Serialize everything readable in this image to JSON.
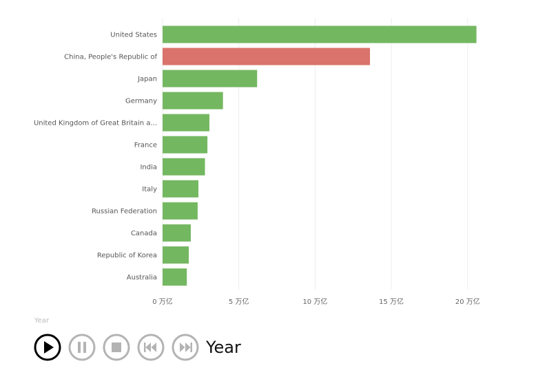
{
  "chart_data": {
    "type": "bar",
    "orientation": "horizontal",
    "categories": [
      "United States",
      "China, People's Republic of",
      "Japan",
      "Germany",
      "United Kingdom of Great Britain a...",
      "France",
      "India",
      "Italy",
      "Russian Federation",
      "Canada",
      "Republic of Korea",
      "Australia"
    ],
    "values": [
      20.58,
      13.6,
      6.2,
      3.96,
      3.07,
      2.94,
      2.78,
      2.35,
      2.3,
      1.85,
      1.72,
      1.59
    ],
    "colors": [
      "#74b761",
      "#d9736b",
      "#74b761",
      "#74b761",
      "#74b761",
      "#74b761",
      "#74b761",
      "#74b761",
      "#74b761",
      "#74b761",
      "#74b761",
      "#74b761"
    ],
    "xlim": [
      0,
      21.5
    ],
    "xticks": [
      0,
      5,
      10,
      15,
      20
    ],
    "xtick_labels": [
      "0 万亿",
      "5 万亿",
      "10 万亿",
      "15 万亿",
      "20 万亿"
    ],
    "grid": true,
    "title": "",
    "xlabel": "",
    "ylabel": ""
  },
  "player": {
    "caption": "Year",
    "year_label": "Year",
    "buttons": [
      "play-icon",
      "pause-icon",
      "stop-icon",
      "skip-back-icon",
      "skip-forward-icon"
    ],
    "active_color": "#000000",
    "inactive_color": "#b3b3b3"
  }
}
